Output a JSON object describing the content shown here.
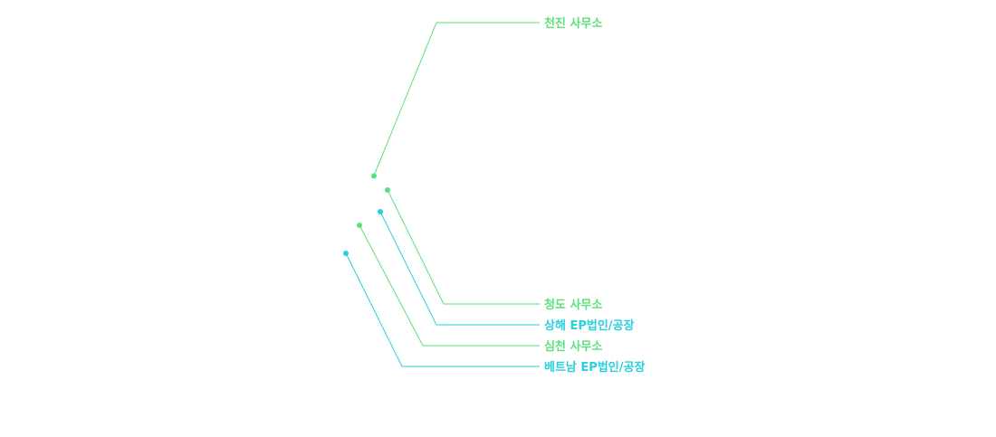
{
  "colors": {
    "office": "#5ce07a",
    "factory": "#27d0de"
  },
  "locations": [
    {
      "id": "tianjin",
      "label": "천진 사무소",
      "kind": "office"
    },
    {
      "id": "qingdao",
      "label": "청도 사무소",
      "kind": "office"
    },
    {
      "id": "shanghai",
      "label": "상해 EP법인/공장",
      "kind": "factory"
    },
    {
      "id": "shenzhen",
      "label": "심천 사무소",
      "kind": "office"
    },
    {
      "id": "vietnam",
      "label": "베트남 EP법인/공장",
      "kind": "factory"
    }
  ]
}
